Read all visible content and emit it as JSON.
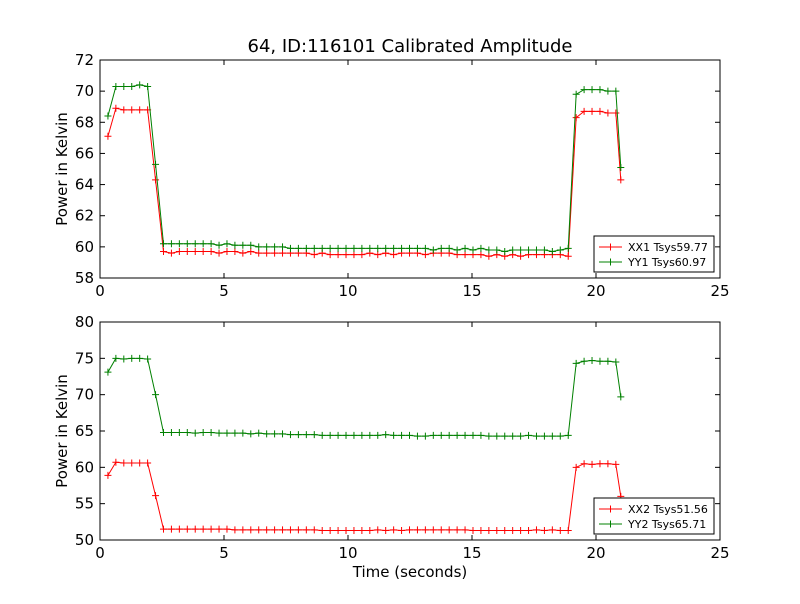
{
  "figure": {
    "title": "64, ID:116101 Calibrated Amplitude"
  },
  "chart_data": [
    {
      "type": "line",
      "title": "64, ID:116101 Calibrated Amplitude",
      "xlabel": "",
      "ylabel": "Power in Kelvin",
      "xlim": [
        0,
        25
      ],
      "ylim": [
        58,
        72
      ],
      "xticks": [
        0,
        5,
        10,
        15,
        20,
        25
      ],
      "yticks": [
        58,
        60,
        62,
        64,
        66,
        68,
        70,
        72
      ],
      "grid": false,
      "legend_position": "lower-right",
      "series": [
        {
          "name": "XX1 Tsys59.77",
          "color": "#ff0000",
          "x": [
            0.32,
            0.64,
            0.96,
            1.28,
            1.6,
            1.92,
            2.24,
            2.56,
            2.88,
            3.2,
            3.52,
            3.84,
            4.16,
            4.48,
            4.8,
            5.12,
            5.44,
            5.76,
            6.08,
            6.4,
            6.72,
            7.04,
            7.36,
            7.68,
            8.0,
            8.32,
            8.64,
            8.96,
            9.28,
            9.6,
            9.92,
            10.24,
            10.56,
            10.88,
            11.2,
            11.52,
            11.84,
            12.16,
            12.48,
            12.8,
            13.12,
            13.44,
            13.76,
            14.08,
            14.4,
            14.72,
            15.04,
            15.36,
            15.68,
            16.0,
            16.32,
            16.64,
            16.96,
            17.28,
            17.6,
            17.92,
            18.24,
            18.56,
            18.88,
            19.2,
            19.52,
            19.84,
            20.16,
            20.48,
            20.8,
            21.0
          ],
          "values": [
            67.1,
            68.9,
            68.8,
            68.8,
            68.8,
            68.8,
            64.3,
            59.7,
            59.6,
            59.7,
            59.7,
            59.7,
            59.7,
            59.7,
            59.6,
            59.7,
            59.7,
            59.6,
            59.7,
            59.6,
            59.6,
            59.6,
            59.6,
            59.6,
            59.6,
            59.6,
            59.5,
            59.6,
            59.5,
            59.5,
            59.5,
            59.5,
            59.5,
            59.6,
            59.5,
            59.6,
            59.5,
            59.6,
            59.6,
            59.6,
            59.5,
            59.6,
            59.6,
            59.6,
            59.5,
            59.5,
            59.5,
            59.5,
            59.4,
            59.5,
            59.4,
            59.5,
            59.4,
            59.5,
            59.5,
            59.5,
            59.5,
            59.5,
            59.4,
            68.3,
            68.7,
            68.7,
            68.7,
            68.6,
            68.6,
            64.3
          ]
        },
        {
          "name": "YY1 Tsys60.97",
          "color": "#008000",
          "x": [
            0.32,
            0.64,
            0.96,
            1.28,
            1.6,
            1.92,
            2.24,
            2.56,
            2.88,
            3.2,
            3.52,
            3.84,
            4.16,
            4.48,
            4.8,
            5.12,
            5.44,
            5.76,
            6.08,
            6.4,
            6.72,
            7.04,
            7.36,
            7.68,
            8.0,
            8.32,
            8.64,
            8.96,
            9.28,
            9.6,
            9.92,
            10.24,
            10.56,
            10.88,
            11.2,
            11.52,
            11.84,
            12.16,
            12.48,
            12.8,
            13.12,
            13.44,
            13.76,
            14.08,
            14.4,
            14.72,
            15.04,
            15.36,
            15.68,
            16.0,
            16.32,
            16.64,
            16.96,
            17.28,
            17.6,
            17.92,
            18.24,
            18.56,
            18.88,
            19.2,
            19.52,
            19.84,
            20.16,
            20.48,
            20.8,
            21.0
          ],
          "values": [
            68.4,
            70.3,
            70.3,
            70.3,
            70.4,
            70.3,
            65.3,
            60.2,
            60.2,
            60.2,
            60.2,
            60.2,
            60.2,
            60.2,
            60.1,
            60.2,
            60.1,
            60.1,
            60.1,
            60.0,
            60.0,
            60.0,
            60.0,
            59.9,
            59.9,
            59.9,
            59.9,
            59.9,
            59.9,
            59.9,
            59.9,
            59.9,
            59.9,
            59.9,
            59.9,
            59.9,
            59.9,
            59.9,
            59.9,
            59.9,
            59.9,
            59.8,
            59.9,
            59.9,
            59.8,
            59.9,
            59.8,
            59.9,
            59.8,
            59.8,
            59.7,
            59.8,
            59.8,
            59.8,
            59.8,
            59.8,
            59.7,
            59.8,
            59.9,
            69.8,
            70.1,
            70.1,
            70.1,
            70.0,
            70.0,
            65.1
          ]
        }
      ]
    },
    {
      "type": "line",
      "title": "",
      "xlabel": "Time (seconds)",
      "ylabel": "Power in Kelvin",
      "xlim": [
        0,
        25
      ],
      "ylim": [
        50,
        80
      ],
      "xticks": [
        0,
        5,
        10,
        15,
        20,
        25
      ],
      "yticks": [
        50,
        55,
        60,
        65,
        70,
        75,
        80
      ],
      "grid": false,
      "legend_position": "lower-right",
      "series": [
        {
          "name": "XX2 Tsys51.56",
          "color": "#ff0000",
          "x": [
            0.32,
            0.64,
            0.96,
            1.28,
            1.6,
            1.92,
            2.24,
            2.56,
            2.88,
            3.2,
            3.52,
            3.84,
            4.16,
            4.48,
            4.8,
            5.12,
            5.44,
            5.76,
            6.08,
            6.4,
            6.72,
            7.04,
            7.36,
            7.68,
            8.0,
            8.32,
            8.64,
            8.96,
            9.28,
            9.6,
            9.92,
            10.24,
            10.56,
            10.88,
            11.2,
            11.52,
            11.84,
            12.16,
            12.48,
            12.8,
            13.12,
            13.44,
            13.76,
            14.08,
            14.4,
            14.72,
            15.04,
            15.36,
            15.68,
            16.0,
            16.32,
            16.64,
            16.96,
            17.28,
            17.6,
            17.92,
            18.24,
            18.56,
            18.88,
            19.2,
            19.52,
            19.84,
            20.16,
            20.48,
            20.8,
            21.0
          ],
          "values": [
            58.9,
            60.7,
            60.6,
            60.6,
            60.6,
            60.6,
            56.1,
            51.5,
            51.5,
            51.5,
            51.5,
            51.5,
            51.5,
            51.5,
            51.5,
            51.5,
            51.4,
            51.4,
            51.4,
            51.4,
            51.4,
            51.4,
            51.4,
            51.4,
            51.4,
            51.4,
            51.4,
            51.3,
            51.3,
            51.3,
            51.3,
            51.3,
            51.3,
            51.3,
            51.4,
            51.3,
            51.4,
            51.3,
            51.4,
            51.4,
            51.4,
            51.4,
            51.4,
            51.4,
            51.4,
            51.4,
            51.3,
            51.3,
            51.3,
            51.3,
            51.3,
            51.3,
            51.3,
            51.3,
            51.4,
            51.3,
            51.4,
            51.3,
            51.3,
            60.0,
            60.5,
            60.4,
            60.5,
            60.5,
            60.4,
            56.0
          ]
        },
        {
          "name": "YY2 Tsys65.71",
          "color": "#008000",
          "x": [
            0.32,
            0.64,
            0.96,
            1.28,
            1.6,
            1.92,
            2.24,
            2.56,
            2.88,
            3.2,
            3.52,
            3.84,
            4.16,
            4.48,
            4.8,
            5.12,
            5.44,
            5.76,
            6.08,
            6.4,
            6.72,
            7.04,
            7.36,
            7.68,
            8.0,
            8.32,
            8.64,
            8.96,
            9.28,
            9.6,
            9.92,
            10.24,
            10.56,
            10.88,
            11.2,
            11.52,
            11.84,
            12.16,
            12.48,
            12.8,
            13.12,
            13.44,
            13.76,
            14.08,
            14.4,
            14.72,
            15.04,
            15.36,
            15.68,
            16.0,
            16.32,
            16.64,
            16.96,
            17.28,
            17.6,
            17.92,
            18.24,
            18.56,
            18.88,
            19.2,
            19.52,
            19.84,
            20.16,
            20.48,
            20.8,
            21.0
          ],
          "values": [
            73.1,
            75.0,
            74.9,
            75.0,
            75.0,
            74.9,
            70.0,
            64.8,
            64.8,
            64.8,
            64.8,
            64.7,
            64.8,
            64.8,
            64.7,
            64.7,
            64.7,
            64.7,
            64.6,
            64.7,
            64.6,
            64.6,
            64.6,
            64.5,
            64.5,
            64.5,
            64.5,
            64.4,
            64.4,
            64.4,
            64.4,
            64.4,
            64.4,
            64.4,
            64.4,
            64.5,
            64.4,
            64.4,
            64.4,
            64.3,
            64.3,
            64.4,
            64.4,
            64.4,
            64.4,
            64.4,
            64.4,
            64.4,
            64.3,
            64.3,
            64.3,
            64.3,
            64.3,
            64.4,
            64.3,
            64.3,
            64.3,
            64.3,
            64.4,
            74.3,
            74.6,
            74.7,
            74.6,
            74.6,
            74.5,
            69.7
          ]
        }
      ]
    }
  ]
}
